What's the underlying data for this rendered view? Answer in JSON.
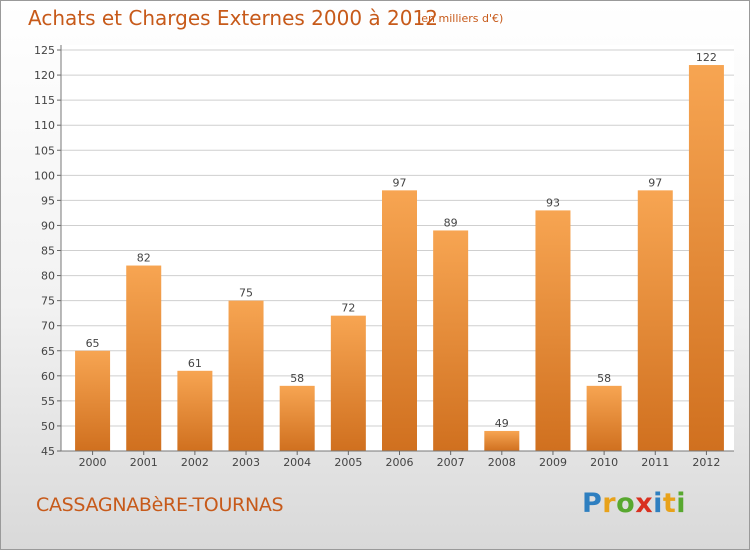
{
  "title": "Achats et Charges Externes 2000 à 2012",
  "unit_note": "(en milliers d'€)",
  "commune": "CASSAGNABèRE-TOURNAS",
  "logo": {
    "text": "Proxiti",
    "letters": [
      "P",
      "r",
      "o",
      "x",
      "i",
      "t",
      "i"
    ],
    "colors": [
      "#2e7fc0",
      "#e8a21a",
      "#58a82f",
      "#d9301f",
      "#2e7fc0",
      "#e8a21a",
      "#58a82f"
    ]
  },
  "colors": {
    "bar_light": "#f7a552",
    "bar_dark": "#d0701f",
    "text": "#c75a1a",
    "grid": "#cfcfcf"
  },
  "chart_data": {
    "type": "bar",
    "categories": [
      "2000",
      "2001",
      "2002",
      "2003",
      "2004",
      "2005",
      "2006",
      "2007",
      "2008",
      "2009",
      "2010",
      "2011",
      "2012"
    ],
    "values": [
      65,
      82,
      61,
      75,
      58,
      72,
      97,
      89,
      49,
      93,
      58,
      97,
      122
    ],
    "value_labels": [
      "65",
      "82",
      "61",
      "75",
      "58",
      "72",
      "97",
      "89",
      "49",
      "93",
      "58",
      "97",
      "122"
    ],
    "y_ticks": [
      "45",
      "50",
      "55",
      "60",
      "65",
      "70",
      "75",
      "80",
      "85",
      "90",
      "95",
      "100",
      "105",
      "110",
      "115",
      "120",
      "125"
    ],
    "ylim": [
      45,
      125
    ],
    "grid": true,
    "legend": "none"
  }
}
